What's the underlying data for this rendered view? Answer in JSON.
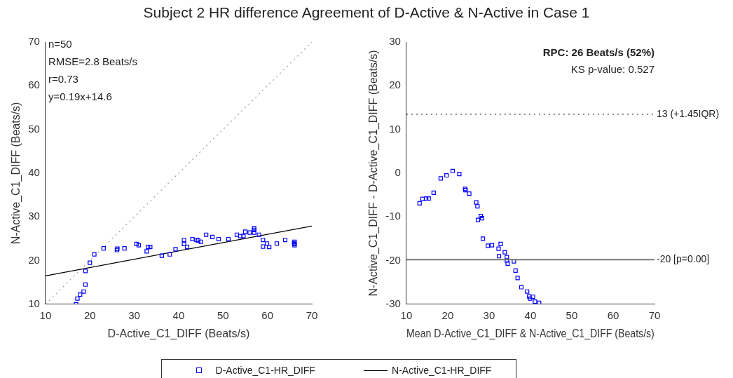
{
  "chart_data": [
    {
      "type": "scatter",
      "title": "Subject 2 HR difference Agreement of D-Active & N-Active in Case 1",
      "xlabel": "D-Active_C1_DIFF (Beats/s)",
      "ylabel": "N-Active_C1_DIFF (Beats/s)",
      "xlim": [
        10,
        70
      ],
      "ylim": [
        10,
        70
      ],
      "xticks": [
        10,
        20,
        30,
        40,
        50,
        60,
        70
      ],
      "yticks": [
        10,
        20,
        30,
        40,
        50,
        60,
        70
      ],
      "legend": "bottom",
      "annotations": [
        "n=50",
        "RMSE=2.8 Beats/s",
        "r=0.73",
        "y=0.19x+14.6"
      ],
      "series": [
        {
          "name": "D-Active_C1-HR_DIFF",
          "color": "#0000ff",
          "marker": "square",
          "x": [
            16.9,
            17.2,
            17.8,
            18.6,
            19.0,
            19.0,
            20.0,
            21.0,
            23.1,
            26.1,
            26.2,
            27.8,
            30.5,
            31.0,
            32.8,
            33.1,
            33.6,
            36.2,
            38.0,
            39.3,
            41.2,
            41.2,
            41.9,
            43.1,
            44.0,
            44.4,
            45.0,
            46.2,
            47.6,
            49.0,
            51.2,
            53.1,
            53.9,
            54.6,
            55.0,
            56.0,
            57.0,
            57.0,
            57.0,
            58.1,
            59.0,
            59.0,
            59.9,
            60.4,
            62.1,
            64.0,
            66.1,
            66.1,
            66.1,
            66.0
          ],
          "values": [
            10.0,
            11.3,
            12.2,
            12.9,
            14.5,
            17.6,
            19.5,
            21.4,
            22.8,
            22.4,
            22.7,
            22.8,
            23.8,
            23.5,
            22.1,
            23.1,
            23.1,
            21.1,
            21.4,
            22.6,
            24.7,
            23.8,
            23.1,
            24.9,
            24.7,
            24.6,
            24.3,
            25.9,
            25.4,
            24.9,
            24.9,
            25.9,
            25.6,
            25.6,
            26.6,
            26.4,
            27.4,
            27.0,
            26.4,
            25.9,
            24.7,
            23.2,
            23.9,
            23.1,
            23.9,
            24.7,
            24.3,
            23.8,
            23.5,
            24.0
          ]
        },
        {
          "name": "N-Active_C1-HR_DIFF",
          "type": "line",
          "color": "#000000",
          "marker": "none",
          "line_style": "solid",
          "x": [
            10,
            70
          ],
          "values": [
            16.5,
            27.9
          ]
        },
        {
          "type": "line",
          "color": "#999999",
          "marker": "none",
          "line_style": "dotted",
          "x": [
            10,
            70
          ],
          "values": [
            10,
            70
          ]
        }
      ]
    },
    {
      "type": "scatter",
      "xlabel": "Mean D-Active_C1_DIFF & N-Active_C1_DIFF (Beats/s)",
      "ylabel": "N-Active_C1_DIFF - D-Active_C1_DIFF (Beats/s)",
      "xlim": [
        10,
        70
      ],
      "ylim": [
        -30,
        30
      ],
      "xticks": [
        10,
        20,
        30,
        40,
        50,
        60,
        70
      ],
      "yticks": [
        -30,
        -20,
        -10,
        0,
        10,
        20,
        30
      ],
      "legend": false,
      "annotations": [
        "RPC: 26 Beats/s (52%)",
        "KS p-value: 0.527"
      ],
      "ref_lines": [
        {
          "axis": "y",
          "value": 13.5,
          "label": "13 (+1.45IQR)",
          "color": "#333333",
          "line_style": "dotted"
        },
        {
          "axis": "y",
          "value": -19.8,
          "label": "-20 [p=0.00]",
          "color": "#777777",
          "line_style": "solid"
        }
      ],
      "series": [
        {
          "color": "#0000ff",
          "marker": "square",
          "x": [
            13.2,
            13.9,
            14.8,
            15.4,
            16.6,
            18.3,
            19.7,
            21.2,
            22.8,
            24.2,
            24.3,
            25.2,
            26.9,
            27.2,
            27.3,
            28.0,
            28.3,
            28.5,
            29.7,
            30.7,
            32.3,
            32.4,
            32.8,
            33.8,
            34.3,
            34.3,
            34.5,
            36.0,
            36.4,
            36.9,
            37.8,
            39.2,
            39.7,
            39.9,
            40.6,
            41.1,
            42.1
          ],
          "values": [
            -6.9,
            -5.9,
            -5.8,
            -5.8,
            -4.5,
            -1.2,
            -0.5,
            0.5,
            -0.2,
            -3.6,
            -3.9,
            -4.7,
            -6.7,
            -7.6,
            -10.7,
            -9.8,
            -10.3,
            -15.0,
            -16.6,
            -16.5,
            -17.3,
            -19.0,
            -16.2,
            -18.1,
            -19.2,
            -20.0,
            -20.7,
            -20.2,
            -22.3,
            -24.0,
            -26.1,
            -27.1,
            -28.2,
            -28.7,
            -28.3,
            -29.4,
            -29.7
          ]
        }
      ]
    }
  ]
}
